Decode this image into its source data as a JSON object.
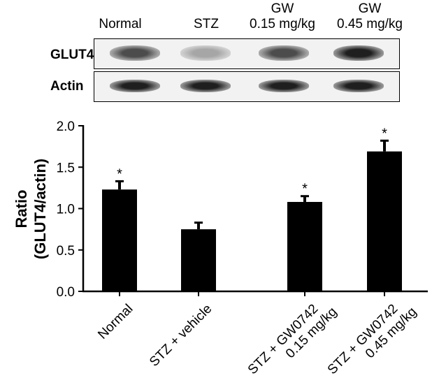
{
  "blot": {
    "lane_headers": [
      {
        "line1": "Normal",
        "line2": ""
      },
      {
        "line1": "STZ",
        "line2": ""
      },
      {
        "line1": "GW",
        "line2": "0.15 mg/kg"
      },
      {
        "line1": "GW",
        "line2": "0.45 mg/kg"
      }
    ],
    "rows": [
      {
        "label": "GLUT4",
        "band_intensity": [
          0.75,
          0.35,
          0.75,
          0.95
        ]
      },
      {
        "label": "Actin",
        "band_intensity": [
          0.95,
          0.95,
          0.95,
          0.95
        ]
      }
    ]
  },
  "chart_data": {
    "type": "bar",
    "categories": [
      "Normal",
      "STZ + vehicle",
      "STZ + GW0742\n0.15 mg/kg",
      "STZ + GW0742\n0.45 mg/kg"
    ],
    "values": [
      1.23,
      0.75,
      1.08,
      1.69
    ],
    "errors": [
      0.1,
      0.08,
      0.07,
      0.13
    ],
    "significance": [
      "*",
      "",
      "*",
      "*"
    ],
    "ylabel_line1": "Ratio",
    "ylabel_line2": "(GLUT4/actin)",
    "ylim": [
      0.0,
      2.0
    ],
    "yticks": [
      "0.0",
      "0.5",
      "1.0",
      "1.5",
      "2.0"
    ],
    "bar_color": "#000000",
    "grid": false
  }
}
